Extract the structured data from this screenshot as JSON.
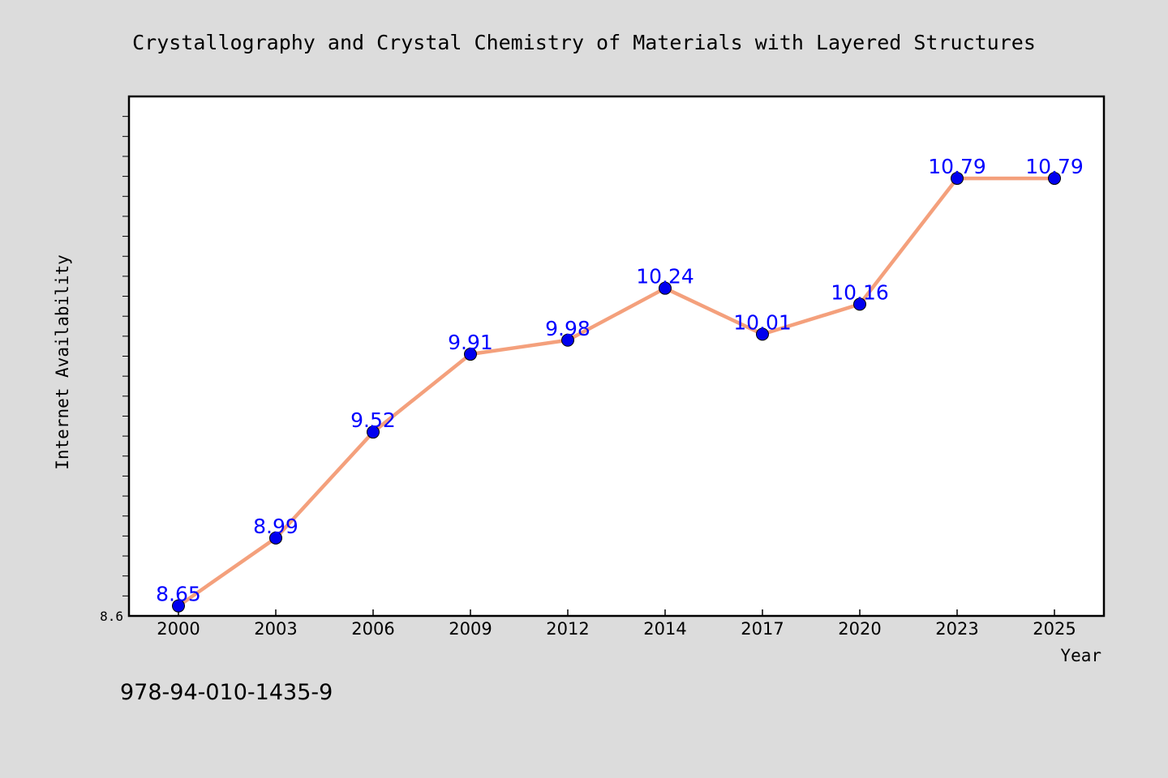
{
  "chart_data": {
    "type": "line",
    "title": "Crystallography and Crystal Chemistry of Materials with Layered Structures",
    "xlabel": "Year",
    "ylabel": "Internet Availability",
    "categories": [
      "2000",
      "2003",
      "2006",
      "2009",
      "2012",
      "2014",
      "2017",
      "2020",
      "2023",
      "2025"
    ],
    "series": [
      {
        "values": [
          8.65,
          8.99,
          9.52,
          9.91,
          9.98,
          10.24,
          10.01,
          10.16,
          10.79,
          10.79
        ]
      }
    ],
    "ylim": [
      8.6,
      11.2
    ],
    "y_tick_labels": [
      "8.6"
    ],
    "grid": false,
    "data_labels": true
  },
  "footer": {
    "isbn": "978-94-010-1435-9"
  },
  "colors": {
    "background": "#dcdcdc",
    "plot_background": "#ffffff",
    "line": "#f4a07c",
    "marker": "#0000ee",
    "data_label": "#0000ff"
  }
}
